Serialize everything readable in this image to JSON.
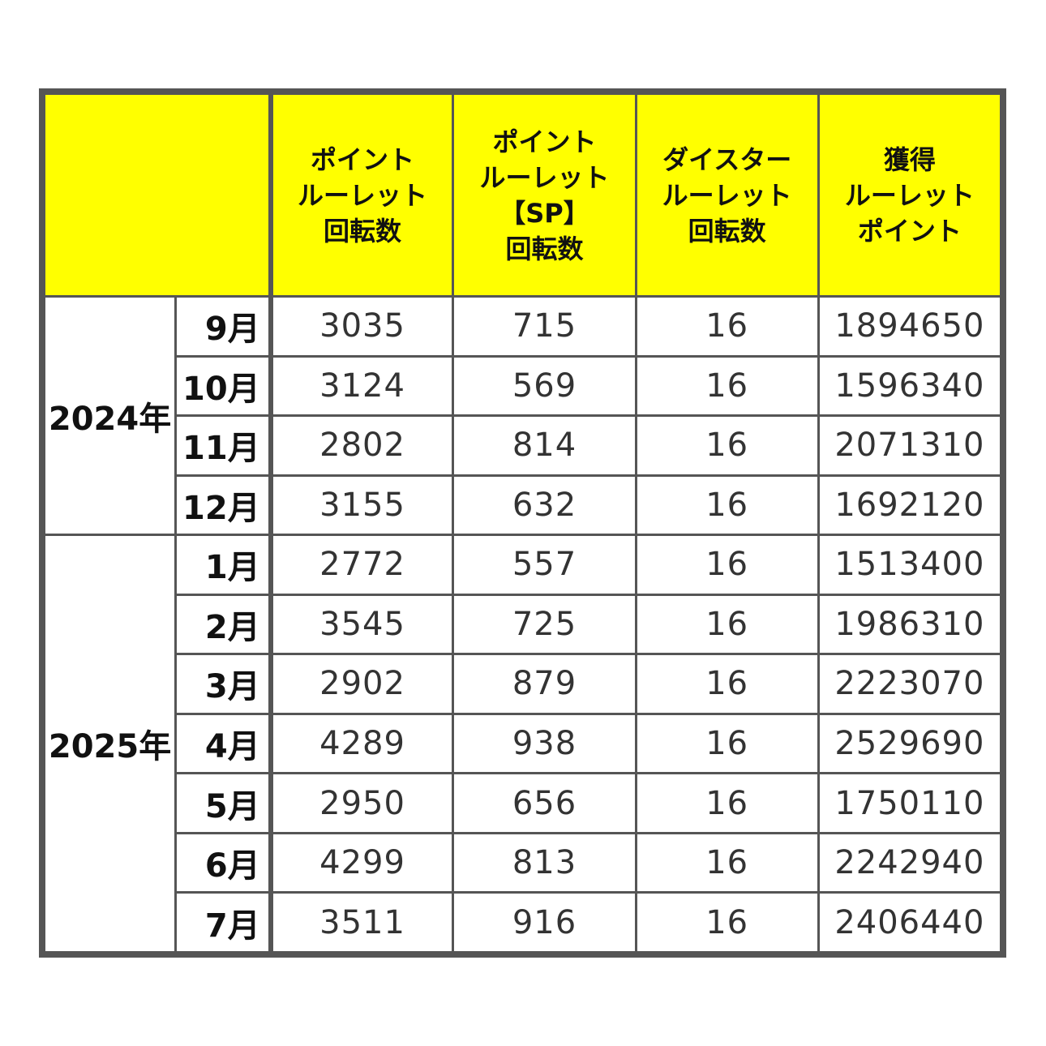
{
  "headers": {
    "col1": [
      "ポイント",
      "ルーレット",
      "回転数"
    ],
    "col2": [
      "ポイント",
      "ルーレット",
      "【SP】",
      "回転数"
    ],
    "col3": [
      "ダイスター",
      "ルーレット",
      "回転数"
    ],
    "col4": [
      "獲得",
      "ルーレット",
      "ポイント"
    ]
  },
  "groups": [
    {
      "year": "2024年",
      "rows": [
        {
          "month": "9月",
          "spins": "3035",
          "sp_spins": "715",
          "dice_spins": "16",
          "points": "1894650"
        },
        {
          "month": "10月",
          "spins": "3124",
          "sp_spins": "569",
          "dice_spins": "16",
          "points": "1596340"
        },
        {
          "month": "11月",
          "spins": "2802",
          "sp_spins": "814",
          "dice_spins": "16",
          "points": "2071310"
        },
        {
          "month": "12月",
          "spins": "3155",
          "sp_spins": "632",
          "dice_spins": "16",
          "points": "1692120"
        }
      ]
    },
    {
      "year": "2025年",
      "rows": [
        {
          "month": "1月",
          "spins": "2772",
          "sp_spins": "557",
          "dice_spins": "16",
          "points": "1513400"
        },
        {
          "month": "2月",
          "spins": "3545",
          "sp_spins": "725",
          "dice_spins": "16",
          "points": "1986310"
        },
        {
          "month": "3月",
          "spins": "2902",
          "sp_spins": "879",
          "dice_spins": "16",
          "points": "2223070"
        },
        {
          "month": "4月",
          "spins": "4289",
          "sp_spins": "938",
          "dice_spins": "16",
          "points": "2529690"
        },
        {
          "month": "5月",
          "spins": "2950",
          "sp_spins": "656",
          "dice_spins": "16",
          "points": "1750110"
        },
        {
          "month": "6月",
          "spins": "4299",
          "sp_spins": "813",
          "dice_spins": "16",
          "points": "2242940"
        },
        {
          "month": "7月",
          "spins": "3511",
          "sp_spins": "916",
          "dice_spins": "16",
          "points": "2406440"
        }
      ]
    }
  ],
  "colors": {
    "header_bg": "#ffff00",
    "border": "#555555",
    "text": "#333333"
  }
}
